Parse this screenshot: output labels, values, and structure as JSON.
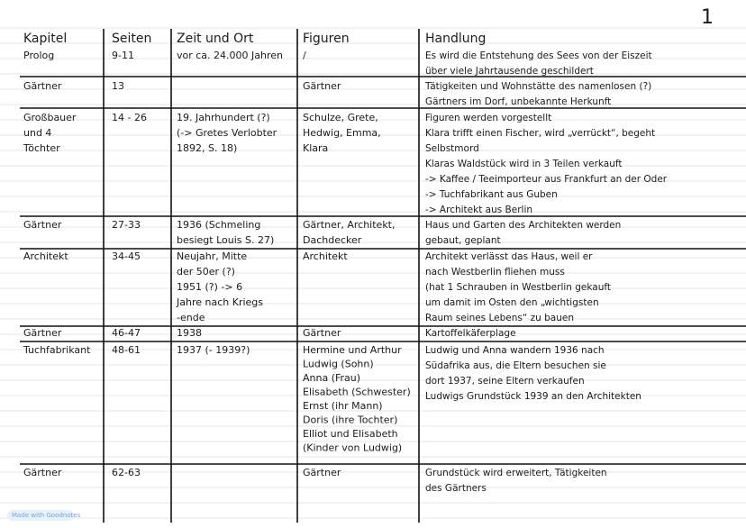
{
  "page_number": "1",
  "table": {
    "header": [
      "Kapitel",
      "Seiten",
      "Zeit und Ort",
      "Figuren",
      "Handlung"
    ],
    "rows": [
      [
        "Prolog",
        "9-11",
        "vor ca. 24.000 Jahren",
        "/",
        [
          "Es wird die Entstehung des Sees von der Eiszeit",
          "über viele Jahrtausende geschildert"
        ]
      ],
      [
        "Gärtner",
        "13",
        null,
        "Gärtner",
        [
          "Tätigkeiten und Wohnstätte des namenlosen (?)",
          "Gärtners im Dorf, unbekannte Herkunft"
        ]
      ],
      [
        [
          "Großbauer",
          "und 4",
          "Töchter"
        ],
        "14 - 26",
        [
          "19. Jahrhundert (?)",
          "(-> Gretes Verlobter",
          "1892, S. 18)"
        ],
        [
          "Schulze, Grete,",
          "Hedwig, Emma,",
          "Klara"
        ],
        [
          "Figuren werden vorgestellt",
          "Klara trifft einen Fischer, wird „verrückt“, begeht",
          "Selbstmord",
          "Klaras Waldstück wird in 3 Teilen verkauft",
          "-> Kaffee / Teeimporteur aus Frankfurt an der Oder",
          "-> Tuchfabrikant aus Guben",
          "-> Architekt aus Berlin"
        ]
      ],
      [
        "Gärtner",
        "27-33",
        [
          "1936 (Schmeling",
          "besiegt Louis S. 27)"
        ],
        [
          "Gärtner, Architekt,",
          "Dachdecker"
        ],
        [
          "Haus und Garten des Architekten werden",
          "gebaut, geplant"
        ]
      ],
      [
        "Architekt",
        "34-45",
        [
          "Neujahr, Mitte",
          "der 50er (?)",
          "1951 (?) -> 6",
          "Jahre nach Kriegs",
          "-ende"
        ],
        "Architekt",
        [
          "Architekt verlässt das Haus, weil er",
          "nach Westberlin fliehen muss",
          "(hat 1 Schrauben in Westberlin gekauft",
          "um damit im Osten den „wichtigsten",
          "Raum seines Lebens“ zu bauen"
        ]
      ],
      [
        "Gärtner",
        "46-47",
        "1938",
        "Gärtner",
        "Kartoffelkäferplage"
      ],
      [
        "Tuchfabrikant",
        "48-61",
        "1937 (- 1939?)",
        [
          "Hermine und Arthur",
          "Ludwig (Sohn)",
          "Anna (Frau)",
          "Elisabeth (Schwester)",
          "Ernst (ihr Mann)",
          "Doris (ihre Tochter)",
          "Elliot und Elisabeth",
          "(Kinder von Ludwig)"
        ],
        [
          "Ludwig und Anna wandern 1936 nach",
          "Südafrika aus, die Eltern besuchen sie",
          "dort 1937, seine Eltern verkaufen",
          "Ludwigs Grundstück 1939 an den Architekten"
        ]
      ],
      [
        "Gärtner",
        "62-63",
        null,
        "Gärtner",
        [
          "Grundstück wird erweitert, Tätigkeiten",
          "des Gärtners"
        ]
      ]
    ]
  },
  "footer": "Made with Goodnotes"
}
